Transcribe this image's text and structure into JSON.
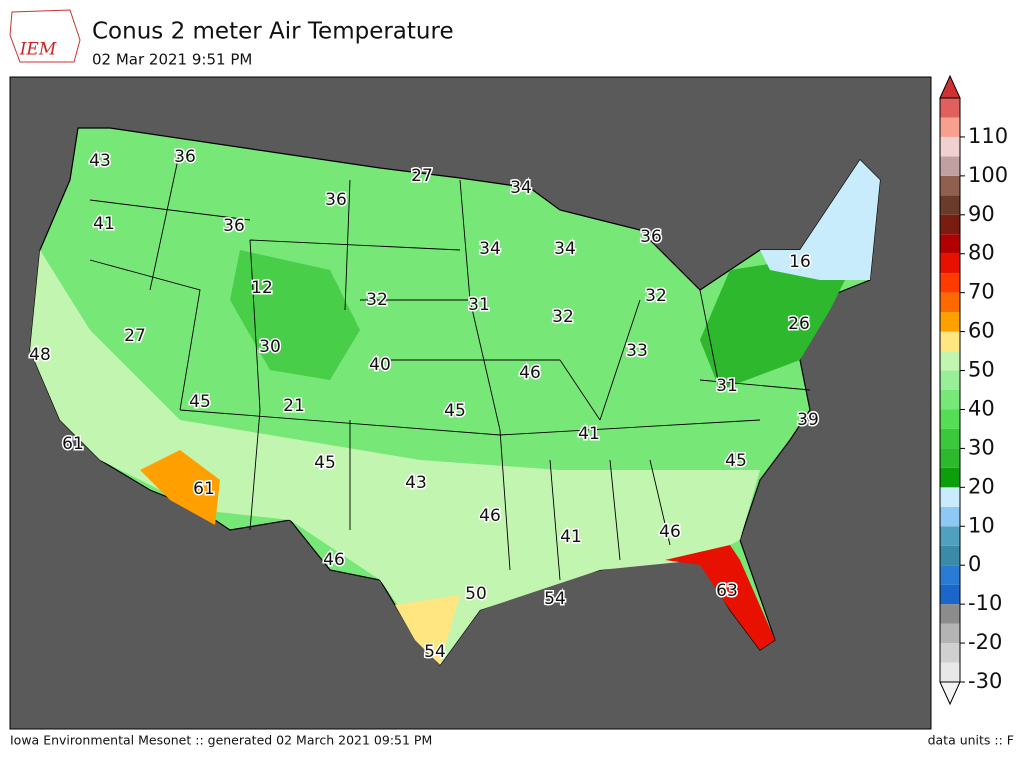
{
  "header": {
    "logo": "IEM",
    "title": "Conus 2 meter Air Temperature",
    "subtitle": "02 Mar 2021 9:51 PM"
  },
  "map": {
    "labels": [
      43,
      36,
      27,
      34,
      36,
      41,
      36,
      34,
      34,
      36,
      16,
      12,
      32,
      31,
      32,
      32,
      26,
      27,
      48,
      30,
      33,
      40,
      46,
      31,
      45,
      21,
      45,
      39,
      41,
      61,
      45,
      45,
      43,
      61,
      46,
      41,
      46,
      46,
      63,
      50,
      54,
      54
    ]
  },
  "colorbar": {
    "lim": [
      -30,
      120
    ],
    "ticks": [
      -30,
      -20,
      -10,
      0,
      10,
      20,
      30,
      40,
      50,
      60,
      70,
      80,
      90,
      100,
      110
    ],
    "colors": [
      "#e8e8e8",
      "#d0d0d0",
      "#b4b4b4",
      "#8c8c8c",
      "#1b66c9",
      "#2a7bd4",
      "#3a8aa8",
      "#50a0c0",
      "#8ec8f5",
      "#c8ecfc",
      "#0d9e0d",
      "#2db82d",
      "#3cc83c",
      "#55dd55",
      "#77e777",
      "#99ee99",
      "#c2f5b0",
      "#ffe680",
      "#ffa000",
      "#ff6a00",
      "#ff3b00",
      "#e81000",
      "#b00000",
      "#7a1d10",
      "#6a3a2a",
      "#8f6050",
      "#c0a0a0",
      "#f0d0d0",
      "#f8a090",
      "#e06060"
    ],
    "over_color": "#d03030",
    "under_color": "#f4f4f4"
  },
  "footer": {
    "left": "Iowa Environmental Mesonet :: generated 02 March 2021 09:51 PM",
    "right": "data units :: F"
  }
}
